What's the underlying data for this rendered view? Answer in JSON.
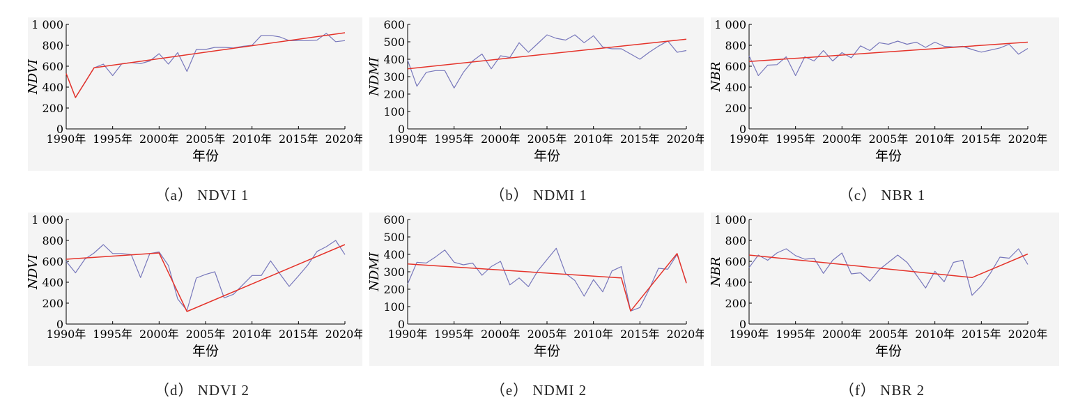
{
  "colors": {
    "series": "#7777bb",
    "trend": "#e5332a",
    "axis": "#000000",
    "panel_bg": "#f4f4f4"
  },
  "chart_data": [
    {
      "type": "line",
      "caption": "（a） NDVI 1",
      "ylabel": "NDVI",
      "xlabel": "年份",
      "ylim": [
        0,
        1000
      ],
      "yticks": [
        "0",
        "200",
        "400",
        "600",
        "800",
        "1 000"
      ],
      "xticks": [
        "1990年",
        "1995年",
        "2000年",
        "2005年",
        "2010年",
        "2015年",
        "2020年"
      ],
      "x": [
        1990,
        1991,
        1992,
        1993,
        1994,
        1995,
        1996,
        1997,
        1998,
        1999,
        2000,
        2001,
        2002,
        2003,
        2004,
        2005,
        2006,
        2007,
        2008,
        2009,
        2010,
        2011,
        2012,
        2013,
        2014,
        2015,
        2016,
        2017,
        2018,
        2019,
        2020
      ],
      "series": [
        {
          "values": [
            530,
            300,
            440,
            585,
            620,
            510,
            625,
            635,
            625,
            650,
            720,
            620,
            730,
            550,
            760,
            760,
            780,
            780,
            775,
            790,
            800,
            895,
            895,
            880,
            845,
            845,
            845,
            850,
            915,
            835,
            845
          ]
        },
        {
          "role": "trend",
          "x": [
            1990,
            1991,
            1993,
            2020
          ],
          "values": [
            530,
            300,
            585,
            920
          ]
        }
      ]
    },
    {
      "type": "line",
      "caption": "（b） NDMI 1",
      "ylabel": "NDMI",
      "xlabel": "年份",
      "ylim": [
        0,
        600
      ],
      "yticks": [
        "0",
        "100",
        "200",
        "300",
        "400",
        "500",
        "600"
      ],
      "xticks": [
        "1990年",
        "1995年",
        "2000年",
        "2005年",
        "2010年",
        "2015年",
        "2020年"
      ],
      "x": [
        1990,
        1991,
        1992,
        1993,
        1994,
        1995,
        1996,
        1997,
        1998,
        1999,
        2000,
        2001,
        2002,
        2003,
        2004,
        2005,
        2006,
        2007,
        2008,
        2009,
        2010,
        2011,
        2012,
        2013,
        2014,
        2015,
        2016,
        2017,
        2018,
        2019,
        2020
      ],
      "series": [
        {
          "values": [
            395,
            245,
            325,
            335,
            335,
            235,
            325,
            390,
            430,
            345,
            420,
            410,
            495,
            440,
            490,
            540,
            520,
            510,
            540,
            495,
            535,
            470,
            460,
            460,
            430,
            400,
            440,
            475,
            505,
            440,
            450
          ]
        },
        {
          "role": "trend",
          "x": [
            1990,
            2020
          ],
          "values": [
            345,
            515
          ]
        }
      ]
    },
    {
      "type": "line",
      "caption": "（c） NBR 1",
      "ylabel": "NBR",
      "xlabel": "年份",
      "ylim": [
        0,
        1000
      ],
      "yticks": [
        "0",
        "200",
        "400",
        "600",
        "800",
        "1 000"
      ],
      "xticks": [
        "1990年",
        "1995年",
        "2000年",
        "2005年",
        "2010年",
        "2015年",
        "2020年"
      ],
      "x": [
        1990,
        1991,
        1992,
        1993,
        1994,
        1995,
        1996,
        1997,
        1998,
        1999,
        2000,
        2001,
        2002,
        2003,
        2004,
        2005,
        2006,
        2007,
        2008,
        2009,
        2010,
        2011,
        2012,
        2013,
        2014,
        2015,
        2016,
        2017,
        2018,
        2019,
        2020
      ],
      "series": [
        {
          "values": [
            700,
            510,
            610,
            615,
            690,
            510,
            690,
            650,
            750,
            650,
            730,
            680,
            795,
            750,
            825,
            810,
            840,
            810,
            830,
            780,
            830,
            790,
            785,
            790,
            760,
            735,
            755,
            775,
            810,
            715,
            770
          ]
        },
        {
          "role": "trend",
          "x": [
            1990,
            2020
          ],
          "values": [
            645,
            830
          ]
        }
      ]
    },
    {
      "type": "line",
      "caption": "（d） NDVI 2",
      "ylabel": "NDVI",
      "xlabel": "年份",
      "ylim": [
        0,
        1000
      ],
      "yticks": [
        "0",
        "200",
        "400",
        "600",
        "800",
        "1 000"
      ],
      "xticks": [
        "1990年",
        "1995年",
        "2000年",
        "2005年",
        "2010年",
        "2015年",
        "2020年"
      ],
      "x": [
        1990,
        1991,
        1992,
        1993,
        1994,
        1995,
        1996,
        1997,
        1998,
        1999,
        2000,
        2001,
        2002,
        2003,
        2004,
        2005,
        2006,
        2007,
        2008,
        2009,
        2010,
        2011,
        2012,
        2013,
        2014,
        2015,
        2016,
        2017,
        2018,
        2019,
        2020
      ],
      "series": [
        {
          "values": [
            600,
            490,
            620,
            680,
            760,
            675,
            675,
            665,
            445,
            675,
            690,
            560,
            240,
            130,
            440,
            475,
            500,
            250,
            285,
            375,
            465,
            465,
            605,
            480,
            360,
            460,
            565,
            695,
            740,
            800,
            665
          ]
        },
        {
          "role": "trend",
          "x": [
            1990,
            2000,
            2003,
            2020
          ],
          "values": [
            620,
            680,
            120,
            760
          ]
        }
      ]
    },
    {
      "type": "line",
      "caption": "（e） NDMI 2",
      "ylabel": "NDMI",
      "xlabel": "年份",
      "ylim": [
        0,
        600
      ],
      "yticks": [
        "0",
        "100",
        "200",
        "300",
        "400",
        "500",
        "600"
      ],
      "xticks": [
        "1990年",
        "1995年",
        "2000年",
        "2005年",
        "2010年",
        "2015年",
        "2020年"
      ],
      "x": [
        1990,
        1991,
        1992,
        1993,
        1994,
        1995,
        1996,
        1997,
        1998,
        1999,
        2000,
        2001,
        2002,
        2003,
        2004,
        2005,
        2006,
        2007,
        2008,
        2009,
        2010,
        2011,
        2012,
        2013,
        2014,
        2015,
        2016,
        2017,
        2018,
        2019,
        2020
      ],
      "series": [
        {
          "values": [
            230,
            355,
            350,
            385,
            425,
            355,
            340,
            350,
            280,
            330,
            360,
            225,
            265,
            215,
            305,
            370,
            435,
            290,
            250,
            160,
            255,
            185,
            305,
            330,
            75,
            95,
            200,
            320,
            315,
            400,
            240
          ]
        },
        {
          "role": "trend",
          "x": [
            1990,
            2013,
            2014,
            2019,
            2020
          ],
          "values": [
            345,
            265,
            75,
            405,
            235
          ]
        }
      ]
    },
    {
      "type": "line",
      "caption": "（f） NBR 2",
      "ylabel": "NBR",
      "xlabel": "年份",
      "ylim": [
        0,
        1000
      ],
      "yticks": [
        "0",
        "200",
        "400",
        "600",
        "800",
        "1 000"
      ],
      "xticks": [
        "1990年",
        "1995年",
        "2000年",
        "2005年",
        "2010年",
        "2015年",
        "2020年"
      ],
      "x": [
        1990,
        1991,
        1992,
        1993,
        1994,
        1995,
        1996,
        1997,
        1998,
        1999,
        2000,
        2001,
        2002,
        2003,
        2004,
        2005,
        2006,
        2007,
        2008,
        2009,
        2010,
        2011,
        2012,
        2013,
        2014,
        2015,
        2016,
        2017,
        2018,
        2019,
        2020
      ],
      "series": [
        {
          "values": [
            540,
            660,
            610,
            680,
            720,
            655,
            620,
            630,
            485,
            610,
            680,
            480,
            490,
            410,
            520,
            590,
            660,
            590,
            470,
            345,
            505,
            405,
            590,
            610,
            275,
            365,
            490,
            640,
            630,
            720,
            570
          ]
        },
        {
          "role": "trend",
          "x": [
            1990,
            2014,
            2020
          ],
          "values": [
            660,
            445,
            670
          ]
        }
      ]
    }
  ]
}
